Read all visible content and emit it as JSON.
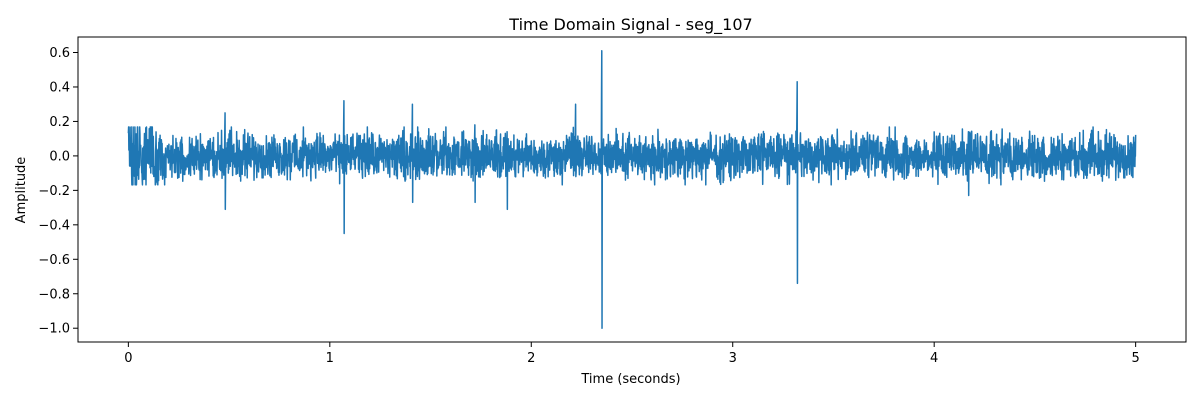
{
  "chart_data": {
    "type": "line",
    "title": "Time Domain Signal - seg_107",
    "xlabel": "Time (seconds)",
    "ylabel": "Amplitude",
    "xlim": [
      -0.25,
      5.25
    ],
    "ylim": [
      -1.08,
      0.69
    ],
    "xticks": [
      0,
      1,
      2,
      3,
      4,
      5
    ],
    "xtick_labels": [
      "0",
      "1",
      "2",
      "3",
      "4",
      "5"
    ],
    "yticks": [
      0.6,
      0.4,
      0.2,
      0.0,
      -0.2,
      -0.4,
      -0.6,
      -0.8,
      -1.0
    ],
    "ytick_labels": [
      "0.6",
      "0.4",
      "0.2",
      "0.0",
      "−0.2",
      "−0.4",
      "−0.6",
      "−0.8",
      "−1.0"
    ],
    "grid": false,
    "legend": "none",
    "series": [
      {
        "color": "#1f77b4",
        "x_range": [
          0,
          5.0
        ],
        "baseline_envelope": {
          "positive": 0.12,
          "negative": -0.12,
          "start_burst_peak": 0.31,
          "start_burst_trough": -0.29
        },
        "spikes": [
          {
            "x": 0.48,
            "max": 0.25,
            "min": -0.31
          },
          {
            "x": 1.07,
            "max": 0.32,
            "min": -0.45
          },
          {
            "x": 1.41,
            "max": 0.3,
            "min": -0.27
          },
          {
            "x": 1.72,
            "max": 0.18,
            "min": -0.27
          },
          {
            "x": 1.88,
            "max": 0.14,
            "min": -0.31
          },
          {
            "x": 2.22,
            "max": 0.3,
            "min": -0.12
          },
          {
            "x": 2.35,
            "max": 0.61,
            "min": -1.0
          },
          {
            "x": 3.32,
            "max": 0.43,
            "min": -0.74
          },
          {
            "x": 4.17,
            "max": 0.14,
            "min": -0.23
          }
        ]
      }
    ]
  }
}
